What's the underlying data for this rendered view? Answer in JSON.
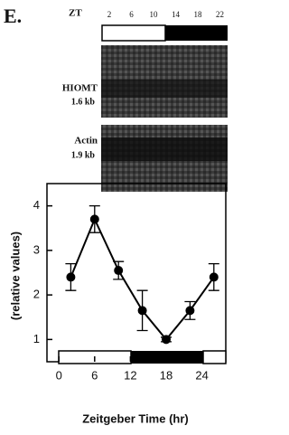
{
  "figure": {
    "panel_label": "E.",
    "zt_label": "ZT",
    "zt_ticks": [
      2,
      6,
      10,
      14,
      18,
      22
    ],
    "blots": [
      {
        "name": "HIOMT",
        "size": "1.6 kb"
      },
      {
        "name": "Actin",
        "size": "1.9 kb"
      }
    ]
  },
  "chart_data": {
    "type": "line",
    "x_label": "Zeitgeber Time (hr)",
    "y_label": "(relative values)",
    "x": [
      2,
      6,
      10,
      14,
      18,
      22,
      26
    ],
    "series": [
      {
        "color": "#000000",
        "values": [
          2.4,
          3.7,
          2.55,
          1.65,
          1.0,
          1.65,
          2.4
        ],
        "errors": [
          0.3,
          0.3,
          0.2,
          0.45,
          0.05,
          0.2,
          0.3
        ]
      }
    ],
    "xlim": [
      -2,
      28
    ],
    "ylim": [
      0.5,
      4.5
    ],
    "xticks": [
      0,
      6,
      12,
      18,
      24
    ],
    "yticks": [
      1,
      2,
      3,
      4
    ]
  }
}
